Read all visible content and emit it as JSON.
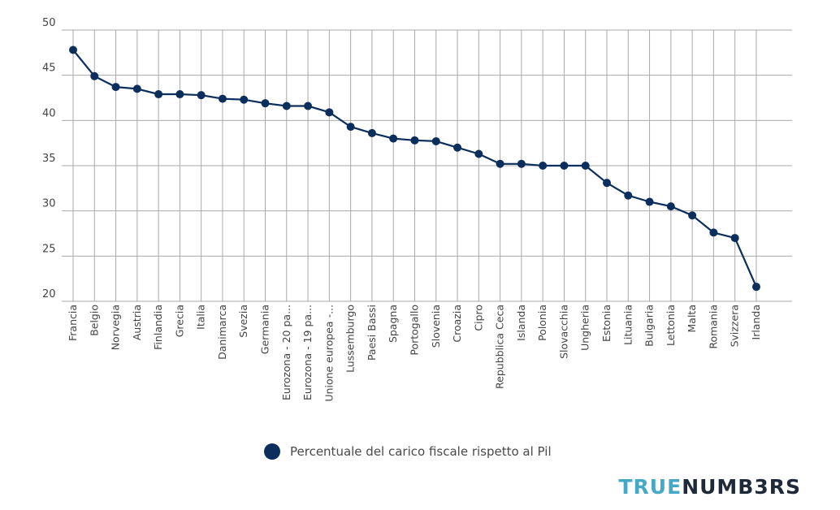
{
  "chart_data": {
    "type": "line",
    "categories": [
      "Francia",
      "Belgio",
      "Norvegia",
      "Austria",
      "Finlandia",
      "Grecia",
      "Italia",
      "Danimarca",
      "Svezia",
      "Germania",
      "Eurozona - 20 pa...",
      "Eurozona - 19 pa...",
      "Unione europea -...",
      "Lussemburgo",
      "Paesi Bassi",
      "Spagna",
      "Portogallo",
      "Slovenia",
      "Croazia",
      "Cipro",
      "Repubblica Ceca",
      "Islanda",
      "Polonia",
      "Slovacchia",
      "Ungheria",
      "Estonia",
      "Lituania",
      "Bulgaria",
      "Lettonia",
      "Malta",
      "Romania",
      "Svizzera",
      "Irlanda"
    ],
    "series": [
      {
        "name": "Percentuale del carico fiscale rispetto al Pil",
        "values": [
          47.8,
          44.9,
          43.7,
          43.5,
          42.9,
          42.9,
          42.8,
          42.4,
          42.3,
          41.9,
          41.6,
          41.6,
          40.9,
          39.3,
          38.6,
          38.0,
          37.8,
          37.7,
          37.0,
          36.3,
          35.2,
          35.2,
          35.0,
          35.0,
          35.0,
          33.1,
          31.7,
          31.0,
          30.5,
          29.5,
          27.6,
          27.0,
          21.6
        ]
      }
    ],
    "yticks": [
      "50",
      "45",
      "40",
      "35",
      "30",
      "25",
      "20"
    ],
    "ylim": [
      20,
      50
    ],
    "grid": true,
    "legend_position": "bottom-center",
    "colors": {
      "line": "#0b2e5c",
      "grid": "#a9a9a9"
    }
  },
  "brand": {
    "part1": "TRUE",
    "part2": "NUMB3RS"
  }
}
